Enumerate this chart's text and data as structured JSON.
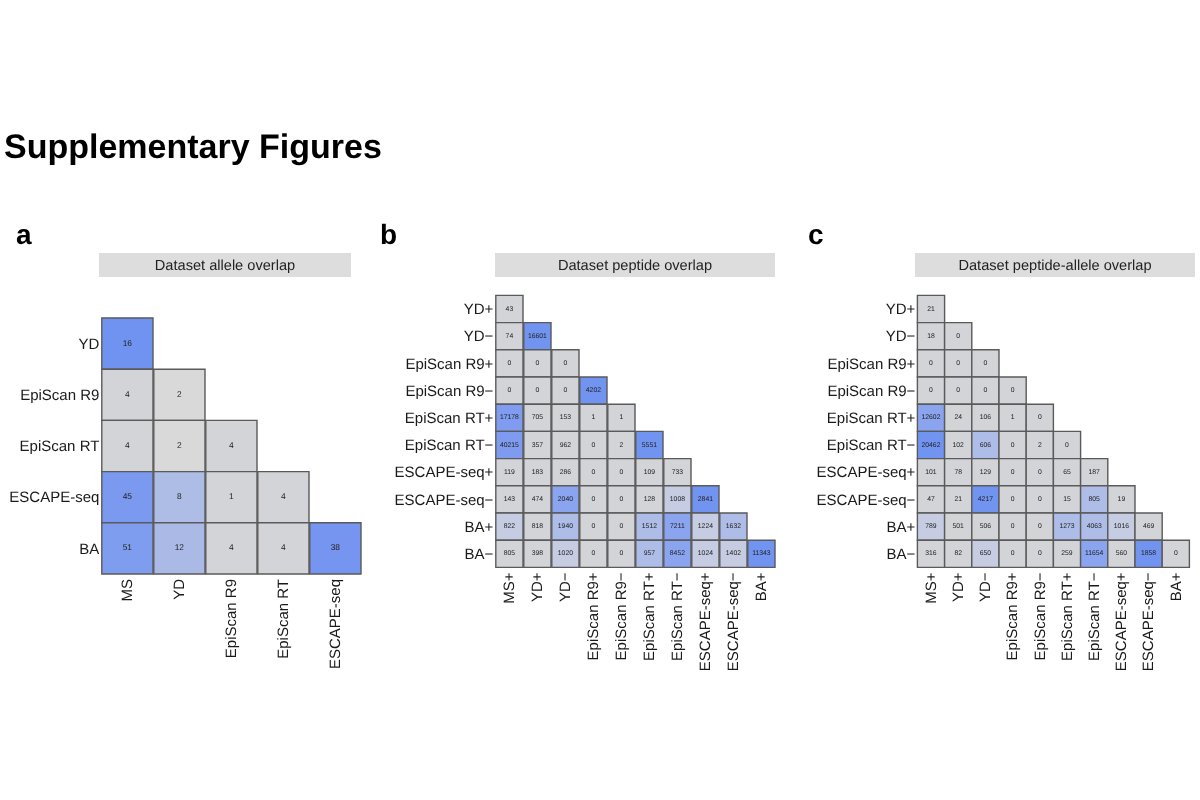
{
  "chart_data": [
    {
      "type": "other",
      "title": "Supplementary Figures"
    },
    {
      "type": "heatmap",
      "title": "Dataset allele overlap",
      "annotations": [
        "a"
      ],
      "data_labels": true,
      "categories": [
        "MS",
        "YD",
        "EpiScan R9",
        "EpiScan RT",
        "ESCAPE-seq"
      ],
      "y_categories": [
        "YD",
        "EpiScan R9",
        "EpiScan RT",
        "ESCAPE-seq",
        "BA"
      ],
      "cells": [
        [
          16,
          null,
          null,
          null,
          null
        ],
        [
          4,
          2,
          null,
          null,
          null
        ],
        [
          4,
          2,
          4,
          null,
          null
        ],
        [
          45,
          8,
          1,
          4,
          null
        ],
        [
          51,
          12,
          4,
          4,
          38
        ]
      ],
      "colors": [
        [
          "#7092f0",
          null,
          null,
          null,
          null
        ],
        [
          "#d3d4d8",
          "#d9d9d9",
          null,
          null,
          null
        ],
        [
          "#d3d4d8",
          "#d9d9d9",
          "#d3d4d8",
          null,
          null
        ],
        [
          "#7a99ef",
          "#aebde6",
          "#d3d4d8",
          "#d3d4d8",
          null
        ],
        [
          "#7f9def",
          "#aab9e6",
          "#d3d4d8",
          "#d3d4d8",
          "#7595f0"
        ]
      ]
    },
    {
      "type": "heatmap",
      "title": "Dataset peptide overlap",
      "annotations": [
        "b"
      ],
      "data_labels": true,
      "categories": [
        "MS+",
        "YD+",
        "YD−",
        "EpiScan R9+",
        "EpiScan R9−",
        "EpiScan RT+",
        "EpiScan RT−",
        "ESCAPE-seq+",
        "ESCAPE-seq−",
        "BA+"
      ],
      "y_categories": [
        "YD+",
        "YD−",
        "EpiScan R9+",
        "EpiScan R9−",
        "EpiScan RT+",
        "EpiScan RT−",
        "ESCAPE-seq+",
        "ESCAPE-seq−",
        "BA+",
        "BA−"
      ],
      "cells": [
        [
          43,
          null,
          null,
          null,
          null,
          null,
          null,
          null,
          null,
          null
        ],
        [
          74,
          16601,
          null,
          null,
          null,
          null,
          null,
          null,
          null,
          null
        ],
        [
          0,
          0,
          0,
          null,
          null,
          null,
          null,
          null,
          null,
          null
        ],
        [
          0,
          0,
          0,
          4202,
          null,
          null,
          null,
          null,
          null,
          null
        ],
        [
          17178,
          705,
          153,
          1,
          1,
          null,
          null,
          null,
          null,
          null
        ],
        [
          40215,
          357,
          962,
          0,
          2,
          5551,
          null,
          null,
          null,
          null
        ],
        [
          119,
          183,
          286,
          0,
          0,
          109,
          733,
          null,
          null,
          null
        ],
        [
          143,
          474,
          2040,
          0,
          0,
          128,
          1008,
          2841,
          null,
          null
        ],
        [
          822,
          818,
          1940,
          0,
          0,
          1512,
          7211,
          1224,
          1632,
          null
        ],
        [
          805,
          398,
          1020,
          0,
          0,
          957,
          8452,
          1024,
          1402,
          11343
        ]
      ],
      "colors": [
        [
          "#d3d4d8",
          null,
          null,
          null,
          null,
          null,
          null,
          null,
          null,
          null
        ],
        [
          "#d3d4d8",
          "#7294f1",
          null,
          null,
          null,
          null,
          null,
          null,
          null,
          null
        ],
        [
          "#d3d4d8",
          "#d3d4d8",
          "#d3d4d8",
          null,
          null,
          null,
          null,
          null,
          null,
          null
        ],
        [
          "#d3d4d8",
          "#d3d4d8",
          "#d3d4d8",
          "#7294f1",
          null,
          null,
          null,
          null,
          null,
          null
        ],
        [
          "#7f9cf0",
          "#d3d4d8",
          "#d3d4d8",
          "#d3d4d8",
          "#d3d4d8",
          null,
          null,
          null,
          null,
          null
        ],
        [
          "#7e9bf0",
          "#d3d4d8",
          "#d3d4d8",
          "#d3d4d8",
          "#d3d4d8",
          "#7294f1",
          null,
          null,
          null,
          null
        ],
        [
          "#d3d4d8",
          "#d3d4d8",
          "#d3d4d8",
          "#d3d4d8",
          "#d3d4d8",
          "#d3d4d8",
          "#d3d4d8",
          null,
          null,
          null
        ],
        [
          "#d3d4d8",
          "#d3d4d8",
          "#8aa4ef",
          "#d3d4d8",
          "#d3d4d8",
          "#d3d4d8",
          "#c6cde2",
          "#7294f1",
          null,
          null
        ],
        [
          "#c6cde2",
          "#d3d4d8",
          "#aebde8",
          "#d3d4d8",
          "#d3d4d8",
          "#aebde8",
          "#8aa4ef",
          "#c6cde2",
          "#aebde8",
          null
        ],
        [
          "#d3d4d8",
          "#d3d4d8",
          "#c6cde2",
          "#d3d4d8",
          "#d3d4d8",
          "#aebde8",
          "#8aa4ef",
          "#c6cde2",
          "#c6cde2",
          "#7294f1"
        ]
      ]
    },
    {
      "type": "heatmap",
      "title": "Dataset peptide-allele overlap",
      "annotations": [
        "c"
      ],
      "data_labels": true,
      "categories": [
        "MS+",
        "YD+",
        "YD−",
        "EpiScan R9+",
        "EpiScan R9−",
        "EpiScan RT+",
        "EpiScan RT−",
        "ESCAPE-seq+",
        "ESCAPE-seq−",
        "BA+"
      ],
      "y_categories": [
        "YD+",
        "YD−",
        "EpiScan R9+",
        "EpiScan R9−",
        "EpiScan RT+",
        "EpiScan RT−",
        "ESCAPE-seq+",
        "ESCAPE-seq−",
        "BA+",
        "BA−"
      ],
      "cells": [
        [
          21,
          null,
          null,
          null,
          null,
          null,
          null,
          null,
          null,
          null
        ],
        [
          18,
          0,
          null,
          null,
          null,
          null,
          null,
          null,
          null,
          null
        ],
        [
          0,
          0,
          0,
          null,
          null,
          null,
          null,
          null,
          null,
          null
        ],
        [
          0,
          0,
          0,
          0,
          null,
          null,
          null,
          null,
          null,
          null
        ],
        [
          12602,
          24,
          106,
          1,
          0,
          null,
          null,
          null,
          null,
          null
        ],
        [
          20462,
          102,
          606,
          0,
          2,
          0,
          null,
          null,
          null,
          null
        ],
        [
          101,
          78,
          129,
          0,
          0,
          65,
          187,
          null,
          null,
          null
        ],
        [
          47,
          21,
          4217,
          0,
          0,
          15,
          805,
          19,
          null,
          null
        ],
        [
          789,
          501,
          506,
          0,
          0,
          1273,
          4063,
          1016,
          469,
          null
        ],
        [
          316,
          82,
          650,
          0,
          0,
          259,
          11654,
          560,
          1858,
          0
        ]
      ],
      "colors": [
        [
          "#d3d4d8",
          null,
          null,
          null,
          null,
          null,
          null,
          null,
          null,
          null
        ],
        [
          "#d3d4d8",
          "#d3d4d8",
          null,
          null,
          null,
          null,
          null,
          null,
          null,
          null
        ],
        [
          "#d3d4d8",
          "#d3d4d8",
          "#d3d4d8",
          null,
          null,
          null,
          null,
          null,
          null,
          null
        ],
        [
          "#d3d4d8",
          "#d3d4d8",
          "#d3d4d8",
          "#d3d4d8",
          null,
          null,
          null,
          null,
          null,
          null
        ],
        [
          "#8aa4ef",
          "#d3d4d8",
          "#d3d4d8",
          "#d3d4d8",
          "#d3d4d8",
          null,
          null,
          null,
          null,
          null
        ],
        [
          "#7294f1",
          "#d3d4d8",
          "#aebde8",
          "#d3d4d8",
          "#d3d4d8",
          "#d3d4d8",
          null,
          null,
          null,
          null
        ],
        [
          "#d3d4d8",
          "#d3d4d8",
          "#d3d4d8",
          "#d3d4d8",
          "#d3d4d8",
          "#d3d4d8",
          "#d3d4d8",
          null,
          null,
          null
        ],
        [
          "#d3d4d8",
          "#d3d4d8",
          "#7294f1",
          "#d3d4d8",
          "#d3d4d8",
          "#d3d4d8",
          "#aebde8",
          "#d3d4d8",
          null,
          null
        ],
        [
          "#c6cde2",
          "#d3d4d8",
          "#d3d4d8",
          "#d3d4d8",
          "#d3d4d8",
          "#aebde8",
          "#aebde8",
          "#c6cde2",
          "#d3d4d8",
          null
        ],
        [
          "#d3d4d8",
          "#d3d4d8",
          "#c6cde2",
          "#d3d4d8",
          "#d3d4d8",
          "#d3d4d8",
          "#8aa4ef",
          "#d3d4d8",
          "#7294f1",
          "#d3d4d8"
        ]
      ]
    }
  ]
}
